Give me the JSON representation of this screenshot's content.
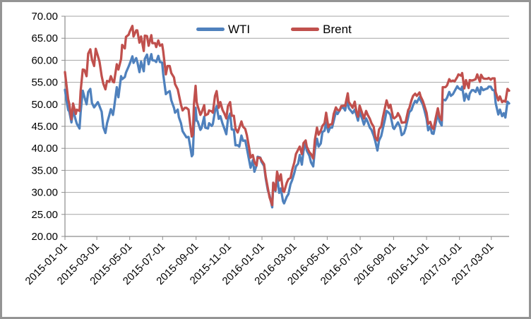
{
  "chart_data": {
    "type": "line",
    "title": "",
    "legend": {
      "position": "top-center",
      "entries": [
        {
          "label": "WTI",
          "color": "#4F81BD"
        },
        {
          "label": "Brent",
          "color": "#C0504D"
        }
      ]
    },
    "style": {
      "background": "#FFFFFF",
      "frame_border_color": "#949494",
      "grid_color": "#A6A6A6",
      "axis_color": "#8C8C8C",
      "text_color": "#000000",
      "grid_horizontal": true,
      "grid_vertical": false
    },
    "y_axis": {
      "min": 20,
      "max": 70,
      "step": 5,
      "ticks": [
        {
          "value": 20,
          "label": "20.00"
        },
        {
          "value": 25,
          "label": "25.00"
        },
        {
          "value": 30,
          "label": "30.00"
        },
        {
          "value": 35,
          "label": "35.00"
        },
        {
          "value": 40,
          "label": "40.00"
        },
        {
          "value": 45,
          "label": "45.00"
        },
        {
          "value": 50,
          "label": "50.00"
        },
        {
          "value": 55,
          "label": "55.00"
        },
        {
          "value": 60,
          "label": "60.00"
        },
        {
          "value": 65,
          "label": "65.00"
        },
        {
          "value": 70,
          "label": "70.00"
        }
      ]
    },
    "x_axis": {
      "type": "date",
      "start": "2015-01-01",
      "end": "2017-04-03",
      "label_rotation_deg": -45,
      "ticks": [
        "2015-01-01",
        "2015-03-01",
        "2015-05-01",
        "2015-07-01",
        "2015-09-01",
        "2015-11-01",
        "2016-01-01",
        "2016-03-01",
        "2016-05-01",
        "2016-07-01",
        "2016-09-01",
        "2016-11-01",
        "2017-01-01",
        "2017-03-01"
      ]
    },
    "dates": [
      "2015-01-01",
      "2015-01-05",
      "2015-01-07",
      "2015-01-09",
      "2015-01-13",
      "2015-01-16",
      "2015-01-21",
      "2015-01-23",
      "2015-01-28",
      "2015-01-30",
      "2015-02-03",
      "2015-02-06",
      "2015-02-10",
      "2015-02-13",
      "2015-02-17",
      "2015-02-20",
      "2015-02-24",
      "2015-02-27",
      "2015-03-03",
      "2015-03-06",
      "2015-03-10",
      "2015-03-13",
      "2015-03-17",
      "2015-03-20",
      "2015-03-24",
      "2015-03-27",
      "2015-03-31",
      "2015-04-02",
      "2015-04-07",
      "2015-04-10",
      "2015-04-15",
      "2015-04-17",
      "2015-04-22",
      "2015-04-24",
      "2015-04-29",
      "2015-05-01",
      "2015-05-06",
      "2015-05-08",
      "2015-05-13",
      "2015-05-15",
      "2015-05-19",
      "2015-05-22",
      "2015-05-27",
      "2015-05-29",
      "2015-06-02",
      "2015-06-05",
      "2015-06-10",
      "2015-06-12",
      "2015-06-17",
      "2015-06-19",
      "2015-06-23",
      "2015-06-26",
      "2015-06-30",
      "2015-07-02",
      "2015-07-07",
      "2015-07-10",
      "2015-07-14",
      "2015-07-17",
      "2015-07-22",
      "2015-07-24",
      "2015-07-29",
      "2015-07-31",
      "2015-08-04",
      "2015-08-07",
      "2015-08-11",
      "2015-08-14",
      "2015-08-18",
      "2015-08-21",
      "2015-08-24",
      "2015-08-26",
      "2015-08-28",
      "2015-08-31",
      "2015-09-02",
      "2015-09-04",
      "2015-09-09",
      "2015-09-11",
      "2015-09-16",
      "2015-09-18",
      "2015-09-23",
      "2015-09-25",
      "2015-09-30",
      "2015-10-02",
      "2015-10-06",
      "2015-10-09",
      "2015-10-13",
      "2015-10-16",
      "2015-10-20",
      "2015-10-23",
      "2015-10-27",
      "2015-10-30",
      "2015-11-03",
      "2015-11-06",
      "2015-11-10",
      "2015-11-13",
      "2015-11-17",
      "2015-11-20",
      "2015-11-24",
      "2015-11-27",
      "2015-12-01",
      "2015-12-04",
      "2015-12-08",
      "2015-12-11",
      "2015-12-15",
      "2015-12-18",
      "2015-12-22",
      "2015-12-24",
      "2015-12-29",
      "2015-12-31",
      "2016-01-05",
      "2016-01-08",
      "2016-01-12",
      "2016-01-15",
      "2016-01-20",
      "2016-01-22",
      "2016-01-26",
      "2016-01-29",
      "2016-02-02",
      "2016-02-05",
      "2016-02-09",
      "2016-02-11",
      "2016-02-16",
      "2016-02-19",
      "2016-02-23",
      "2016-02-26",
      "2016-03-01",
      "2016-03-04",
      "2016-03-08",
      "2016-03-11",
      "2016-03-15",
      "2016-03-18",
      "2016-03-22",
      "2016-03-24",
      "2016-03-29",
      "2016-04-01",
      "2016-04-05",
      "2016-04-08",
      "2016-04-12",
      "2016-04-15",
      "2016-04-19",
      "2016-04-22",
      "2016-04-26",
      "2016-04-29",
      "2016-05-03",
      "2016-05-06",
      "2016-05-10",
      "2016-05-13",
      "2016-05-17",
      "2016-05-20",
      "2016-05-24",
      "2016-05-27",
      "2016-06-01",
      "2016-06-03",
      "2016-06-08",
      "2016-06-10",
      "2016-06-14",
      "2016-06-17",
      "2016-06-21",
      "2016-06-24",
      "2016-06-27",
      "2016-06-30",
      "2016-07-05",
      "2016-07-08",
      "2016-07-12",
      "2016-07-15",
      "2016-07-19",
      "2016-07-22",
      "2016-07-26",
      "2016-07-29",
      "2016-08-02",
      "2016-08-05",
      "2016-08-09",
      "2016-08-12",
      "2016-08-16",
      "2016-08-19",
      "2016-08-23",
      "2016-08-26",
      "2016-08-31",
      "2016-09-02",
      "2016-09-07",
      "2016-09-09",
      "2016-09-13",
      "2016-09-16",
      "2016-09-20",
      "2016-09-23",
      "2016-09-28",
      "2016-09-30",
      "2016-10-04",
      "2016-10-07",
      "2016-10-11",
      "2016-10-14",
      "2016-10-19",
      "2016-10-21",
      "2016-10-25",
      "2016-10-28",
      "2016-11-01",
      "2016-11-04",
      "2016-11-08",
      "2016-11-11",
      "2016-11-14",
      "2016-11-18",
      "2016-11-22",
      "2016-11-25",
      "2016-11-29",
      "2016-12-01",
      "2016-12-06",
      "2016-12-09",
      "2016-12-13",
      "2016-12-16",
      "2016-12-20",
      "2016-12-23",
      "2016-12-28",
      "2016-12-30",
      "2017-01-04",
      "2017-01-06",
      "2017-01-10",
      "2017-01-13",
      "2017-01-18",
      "2017-01-20",
      "2017-01-24",
      "2017-01-27",
      "2017-01-31",
      "2017-02-03",
      "2017-02-08",
      "2017-02-10",
      "2017-02-14",
      "2017-02-17",
      "2017-02-22",
      "2017-02-24",
      "2017-02-28",
      "2017-03-03",
      "2017-03-07",
      "2017-03-09",
      "2017-03-14",
      "2017-03-17",
      "2017-03-21",
      "2017-03-24",
      "2017-03-27",
      "2017-03-31",
      "2017-04-03"
    ],
    "series": [
      {
        "name": "WTI",
        "color": "#4F81BD",
        "stroke_width": 3.3,
        "values": [
          53.3,
          50.0,
          48.7,
          48.4,
          45.9,
          48.7,
          46.4,
          45.6,
          44.5,
          48.2,
          53.1,
          51.7,
          50.0,
          52.8,
          53.5,
          50.3,
          49.3,
          49.8,
          50.5,
          49.6,
          48.3,
          44.8,
          43.5,
          45.7,
          47.5,
          48.9,
          47.6,
          49.1,
          53.9,
          51.6,
          56.4,
          55.7,
          56.2,
          57.2,
          58.6,
          59.2,
          60.9,
          59.4,
          60.5,
          59.7,
          57.3,
          59.7,
          57.5,
          60.3,
          61.3,
          59.1,
          61.4,
          60.0,
          59.9,
          59.6,
          61.0,
          59.6,
          59.5,
          56.9,
          52.3,
          52.7,
          53.0,
          50.9,
          49.2,
          48.1,
          48.8,
          47.1,
          45.7,
          43.9,
          43.1,
          42.5,
          42.6,
          40.5,
          38.2,
          38.6,
          45.2,
          49.2,
          46.3,
          46.1,
          44.2,
          44.6,
          47.2,
          44.7,
          44.5,
          45.7,
          45.1,
          45.5,
          48.5,
          49.6,
          46.7,
          47.3,
          45.6,
          44.6,
          43.2,
          46.6,
          47.9,
          44.3,
          44.2,
          40.7,
          40.7,
          40.4,
          42.9,
          41.7,
          41.8,
          40.0,
          37.5,
          35.6,
          37.3,
          34.7,
          36.1,
          38.1,
          37.9,
          37.0,
          36.0,
          33.2,
          30.4,
          29.4,
          26.6,
          32.2,
          30.3,
          33.6,
          29.9,
          30.9,
          28.0,
          27.5,
          29.0,
          29.6,
          31.9,
          32.8,
          34.4,
          35.9,
          36.5,
          38.5,
          36.3,
          39.4,
          41.5,
          39.5,
          38.3,
          36.8,
          35.9,
          39.7,
          42.2,
          40.4,
          41.1,
          43.7,
          44.0,
          45.9,
          43.7,
          44.7,
          44.7,
          46.2,
          48.3,
          47.8,
          48.6,
          49.3,
          49.1,
          48.6,
          51.2,
          49.1,
          48.5,
          48.0,
          48.8,
          47.6,
          46.3,
          48.3,
          46.6,
          45.4,
          46.8,
          46.0,
          44.7,
          44.2,
          42.9,
          41.6,
          39.5,
          41.8,
          42.8,
          44.5,
          46.6,
          48.5,
          48.1,
          47.6,
          44.7,
          44.4,
          45.5,
          45.9,
          44.9,
          43.0,
          43.4,
          44.5,
          47.1,
          48.2,
          48.7,
          49.8,
          50.8,
          50.4,
          51.6,
          50.9,
          50.0,
          48.7,
          46.7,
          44.1,
          45.0,
          43.4,
          43.3,
          45.7,
          48.0,
          46.1,
          45.2,
          51.1,
          50.9,
          51.5,
          52.8,
          51.9,
          52.3,
          53.0,
          54.1,
          53.7,
          53.3,
          54.0,
          50.8,
          52.4,
          51.1,
          52.4,
          53.2,
          53.2,
          52.8,
          53.8,
          52.3,
          53.9,
          53.2,
          53.4,
          53.6,
          54.0,
          54.0,
          53.3,
          53.1,
          50.3,
          47.7,
          48.8,
          47.3,
          48.0,
          47.0,
          50.6,
          50.2
        ]
      },
      {
        "name": "Brent",
        "color": "#C0504D",
        "stroke_width": 3.3,
        "values": [
          57.3,
          53.1,
          51.1,
          50.1,
          46.6,
          50.2,
          47.8,
          48.8,
          48.5,
          53.0,
          57.9,
          57.8,
          56.4,
          61.5,
          62.5,
          60.2,
          58.7,
          62.6,
          61.0,
          59.7,
          56.4,
          54.7,
          53.4,
          55.3,
          55.1,
          56.4,
          55.1,
          55.0,
          59.1,
          57.9,
          60.3,
          63.5,
          62.7,
          65.3,
          65.8,
          66.5,
          67.8,
          65.4,
          66.8,
          66.8,
          64.0,
          65.4,
          62.1,
          65.6,
          65.5,
          63.3,
          65.7,
          63.9,
          63.9,
          63.0,
          64.5,
          63.3,
          63.6,
          62.1,
          56.8,
          58.7,
          58.7,
          57.1,
          56.1,
          54.6,
          53.4,
          52.2,
          49.9,
          48.6,
          49.2,
          49.2,
          48.8,
          45.5,
          42.7,
          43.1,
          50.1,
          54.2,
          50.5,
          49.6,
          47.6,
          48.1,
          49.8,
          47.5,
          47.8,
          48.6,
          48.4,
          48.1,
          51.9,
          53.0,
          49.2,
          50.5,
          48.7,
          48.0,
          46.8,
          49.6,
          50.5,
          47.4,
          47.4,
          44.5,
          43.6,
          44.7,
          46.1,
          44.9,
          44.4,
          43.0,
          40.3,
          37.9,
          38.5,
          36.9,
          36.1,
          37.9,
          37.8,
          37.3,
          36.4,
          33.6,
          30.9,
          28.9,
          27.1,
          32.2,
          30.5,
          34.7,
          32.7,
          34.1,
          30.3,
          30.1,
          32.2,
          33.0,
          33.3,
          35.1,
          36.8,
          38.7,
          39.7,
          40.4,
          38.7,
          41.2,
          41.8,
          40.4,
          39.1,
          38.7,
          37.7,
          41.9,
          44.7,
          43.1,
          44.0,
          45.1,
          45.7,
          48.1,
          44.8,
          45.4,
          45.5,
          47.8,
          49.3,
          48.7,
          48.6,
          49.6,
          49.7,
          49.6,
          52.5,
          50.5,
          49.8,
          49.2,
          50.6,
          48.4,
          47.2,
          49.7,
          47.9,
          46.8,
          48.5,
          47.6,
          46.7,
          45.7,
          44.9,
          42.5,
          41.8,
          44.3,
          45.0,
          47.0,
          49.2,
          50.9,
          49.2,
          49.9,
          47.0,
          46.8,
          47.3,
          48.0,
          47.1,
          45.8,
          45.9,
          45.9,
          48.7,
          49.1,
          50.9,
          51.9,
          52.4,
          51.9,
          52.7,
          51.8,
          50.8,
          49.7,
          48.1,
          45.6,
          46.0,
          44.8,
          44.4,
          46.9,
          49.1,
          47.2,
          46.4,
          53.9,
          53.9,
          54.3,
          55.7,
          55.2,
          55.4,
          55.2,
          56.2,
          56.8,
          56.5,
          57.1,
          53.6,
          55.5,
          53.7,
          55.5,
          55.4,
          55.5,
          55.7,
          56.8,
          55.1,
          56.7,
          55.9,
          55.8,
          55.8,
          56.0,
          55.6,
          55.9,
          55.9,
          52.8,
          50.9,
          51.8,
          50.5,
          50.8,
          50.6,
          53.5,
          53.1
        ]
      }
    ]
  }
}
